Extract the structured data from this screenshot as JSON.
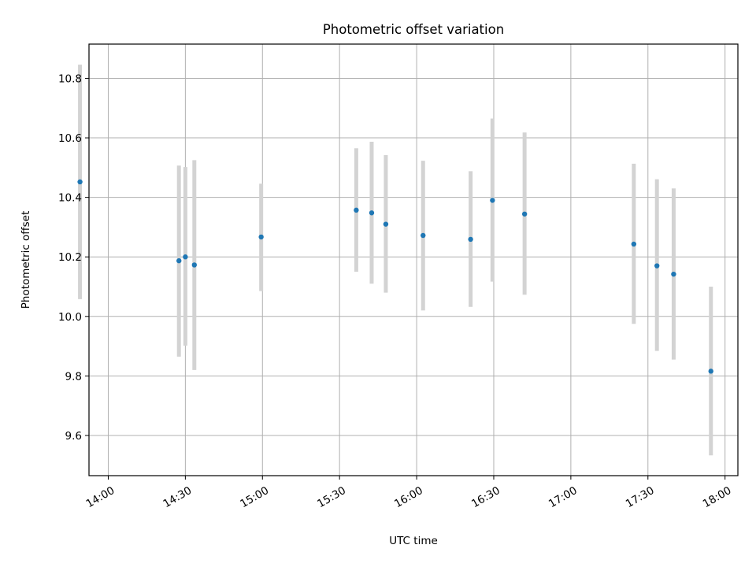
{
  "chart_data": {
    "type": "scatter",
    "title": "Photometric offset variation",
    "xlabel": "UTC time",
    "ylabel": "Photometric offset",
    "grid": true,
    "legend": "none",
    "x_axis_kind": "time",
    "xlim": [
      "13:52:30",
      "18:05:00"
    ],
    "ylim": [
      9.465,
      10.915
    ],
    "x_ticks": [
      "14:00",
      "14:30",
      "15:00",
      "15:30",
      "16:00",
      "16:30",
      "17:00",
      "17:30",
      "18:00"
    ],
    "y_ticks": [
      "9.6",
      "9.8",
      "10.0",
      "10.2",
      "10.4",
      "10.6",
      "10.8"
    ],
    "colors": {
      "point": "#1f77b4",
      "errorbar": "#d3d3d3",
      "grid": "#b0b0b0"
    },
    "series": [
      {
        "x": [
          "13:49:00",
          "14:27:30",
          "14:30:00",
          "14:33:30",
          "14:59:30",
          "15:36:30",
          "15:42:30",
          "15:48:00",
          "16:02:30",
          "16:21:00",
          "16:29:30",
          "16:42:00",
          "17:24:30",
          "17:33:30",
          "17:40:00",
          "17:54:30"
        ],
        "y": [
          10.452,
          10.187,
          10.2,
          10.173,
          10.267,
          10.357,
          10.348,
          10.31,
          10.272,
          10.259,
          10.39,
          10.344,
          10.243,
          10.17,
          10.142,
          9.816
        ],
        "yerr_low": [
          10.058,
          9.865,
          9.902,
          9.82,
          10.085,
          10.15,
          10.11,
          10.08,
          10.02,
          10.032,
          10.117,
          10.073,
          9.975,
          9.884,
          9.855,
          9.533
        ],
        "yerr_high": [
          10.846,
          10.507,
          10.502,
          10.525,
          10.446,
          10.565,
          10.587,
          10.542,
          10.523,
          10.488,
          10.665,
          10.618,
          10.513,
          10.461,
          10.43,
          10.1
        ]
      }
    ]
  }
}
